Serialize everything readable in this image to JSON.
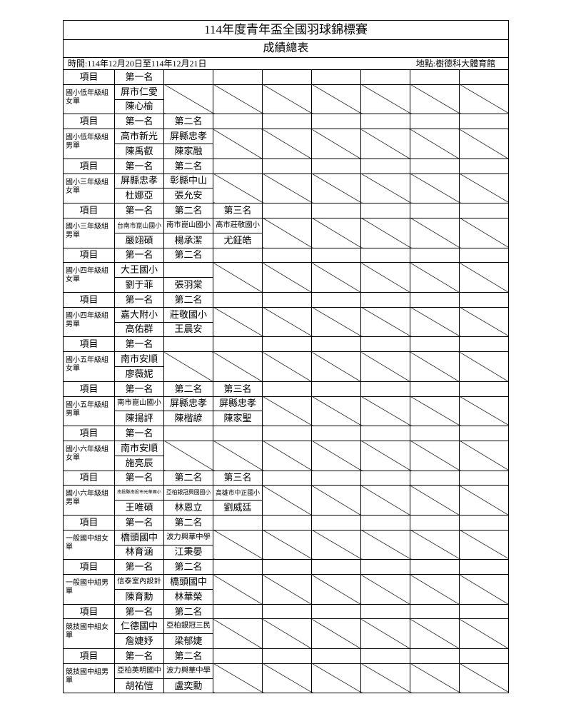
{
  "header": {
    "title": "114年度青年盃全國羽球錦標賽",
    "subtitle": "成績總表",
    "time": "時間:114年12月20日至114年12月21日",
    "venue": "地點:樹德科大體育館"
  },
  "blocks": [
    {
      "item_label": "項目",
      "category": "國小低年級組女單",
      "ranks": [
        "第一名"
      ],
      "schools": [
        "屏市仁愛"
      ],
      "names": [
        "陳心榆"
      ]
    },
    {
      "item_label": "項目",
      "category": "國小低年級組男單",
      "ranks": [
        "第一名",
        "第二名"
      ],
      "schools": [
        "高市新光",
        "屏縣忠孝"
      ],
      "names": [
        "陳禹叡",
        "陳家融"
      ]
    },
    {
      "item_label": "項目",
      "category": "國小三年級組女單",
      "ranks": [
        "第一名",
        "第二名"
      ],
      "schools": [
        "屏縣忠孝",
        "彰縣中山"
      ],
      "names": [
        "杜娜亞",
        "張允安"
      ]
    },
    {
      "item_label": "項目",
      "category": "國小三年級組男單",
      "ranks": [
        "第一名",
        "第二名",
        "第三名"
      ],
      "schools": [
        "台南市崑山國小",
        "南市崑山國小",
        "高市莊敬國小"
      ],
      "names": [
        "嚴翊碩",
        "楊承潔",
        "尤鉦皓"
      ]
    },
    {
      "item_label": "項目",
      "category": "國小四年級組女單",
      "ranks": [
        "第一名",
        "第二名"
      ],
      "schools": [
        "大王國小",
        null
      ],
      "names": [
        "劉于菲",
        "張羽棠"
      ]
    },
    {
      "item_label": "項目",
      "category": "國小四年級組男單",
      "ranks": [
        "第一名",
        "第二名"
      ],
      "schools": [
        "嘉大附小",
        "莊敬國小"
      ],
      "names": [
        "高佑群",
        "王晨安"
      ]
    },
    {
      "item_label": "項目",
      "category": "國小五年級組女單",
      "ranks": [
        "第一名"
      ],
      "schools": [
        "南市安順"
      ],
      "names": [
        "廖薇妮"
      ]
    },
    {
      "item_label": "項目",
      "category": "國小五年級組男單",
      "ranks": [
        "第一名",
        "第二名",
        "第三名"
      ],
      "schools": [
        "南市崑山國小",
        "屏縣忠孝",
        "屏縣忠孝"
      ],
      "names": [
        "陳揚評",
        "陳楷諺",
        "陳家聖"
      ]
    },
    {
      "item_label": "項目",
      "category": "國小六年級組女單",
      "ranks": [
        "第一名"
      ],
      "schools": [
        "南市安順"
      ],
      "names": [
        "施亮辰"
      ]
    },
    {
      "item_label": "項目",
      "category": "國小六年級組男單",
      "ranks": [
        "第一名",
        "第二名",
        "第三名"
      ],
      "schools": [
        "南投縣南投市光華國小",
        "亞柏銀冠興國國小",
        "高雄市中正國小"
      ],
      "names": [
        "王唯碩",
        "林恩立",
        "劉威廷"
      ]
    },
    {
      "item_label": "項目",
      "category": "一般國中組女單",
      "ranks": [
        "第一名",
        "第二名"
      ],
      "schools": [
        "橋頭國中",
        "波力興華中學"
      ],
      "names": [
        "林育涵",
        "江秉晏"
      ]
    },
    {
      "item_label": "項目",
      "category": "一般國中組男單",
      "ranks": [
        "第一名",
        "第二名"
      ],
      "schools": [
        "信泰室內設計",
        "橋頭國中"
      ],
      "names": [
        "陳育勳",
        "林華榮"
      ]
    },
    {
      "item_label": "項目",
      "category": "競技國中組女單",
      "ranks": [
        "第一名",
        "第二名"
      ],
      "schools": [
        "仁德國中",
        "亞柏銀冠三民"
      ],
      "names": [
        "詹婕妤",
        "梁郁婕"
      ]
    },
    {
      "item_label": "項目",
      "category": "競技國中組男單",
      "ranks": [
        "第一名",
        "第二名"
      ],
      "schools": [
        "亞柏英明國中",
        "波力興華中學"
      ],
      "names": [
        "胡祐愷",
        "盧奕勳"
      ]
    }
  ]
}
